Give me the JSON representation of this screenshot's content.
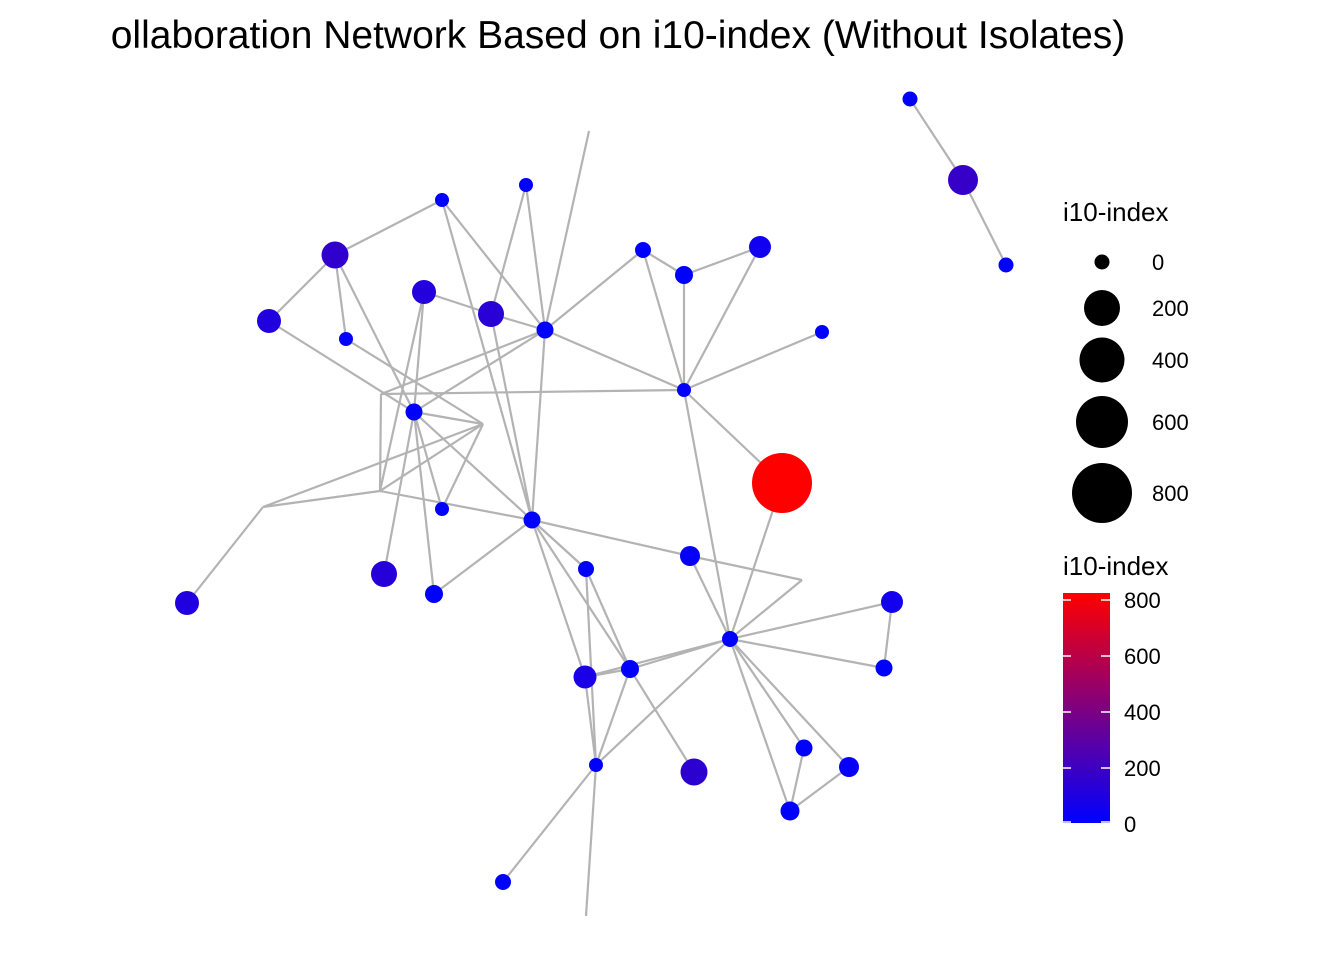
{
  "title": "ollaboration Network Based on i10-index (Without Isolates)",
  "colors": {
    "low": "#0000ff",
    "high": "#ff0000",
    "edge": "#b3b3b3",
    "text": "#000000"
  },
  "legend": {
    "size_title": "i10-index",
    "size_labels": [
      "0",
      "200",
      "400",
      "600",
      "800"
    ],
    "color_title": "i10-index",
    "color_labels": [
      "800",
      "600",
      "400",
      "200",
      "0"
    ]
  }
}
